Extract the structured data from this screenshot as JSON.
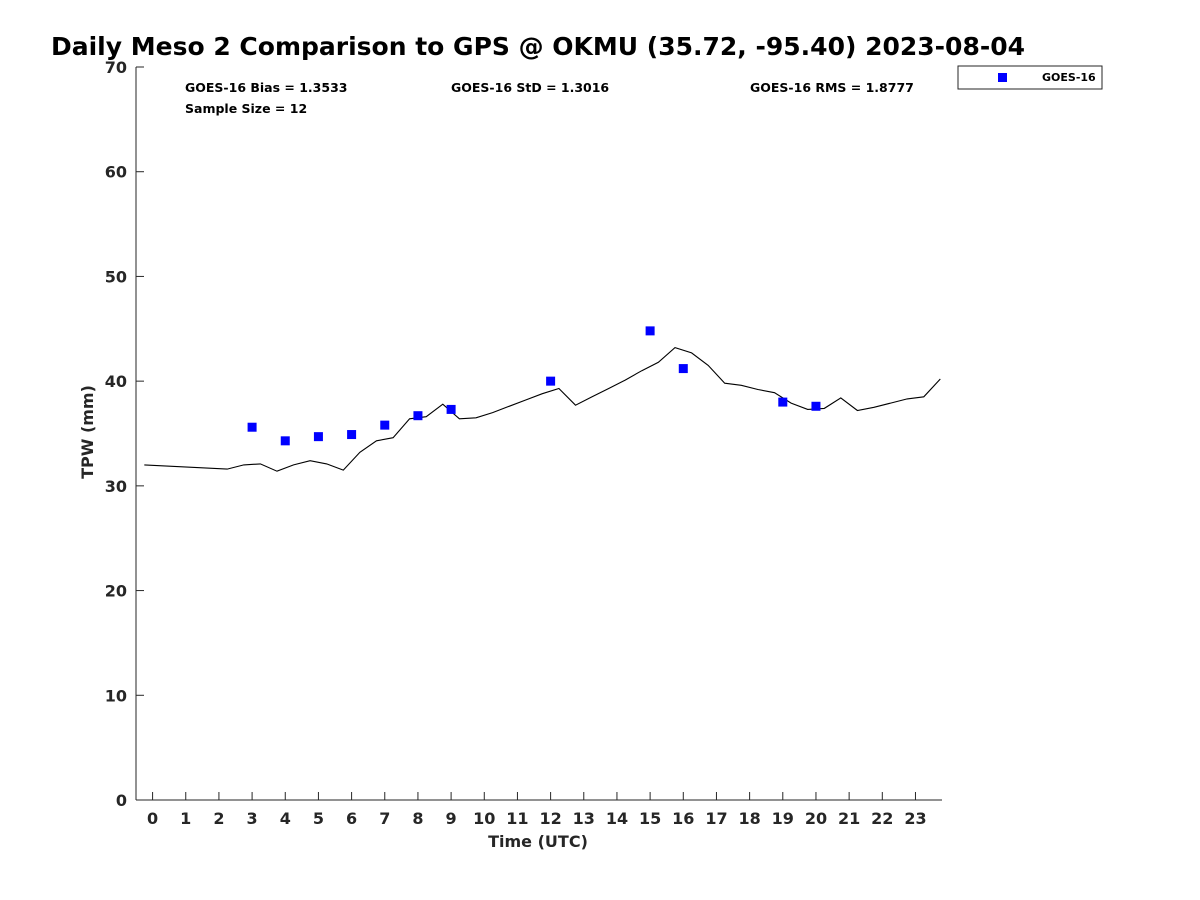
{
  "chart_data": {
    "type": "scatter",
    "title": "Daily Meso 2 Comparison to GPS @ OKMU (35.72, -95.40) 2023-08-04",
    "xlabel": "Time (UTC)",
    "ylabel": "TPW (mm)",
    "xlim": [
      -0.5,
      23.8
    ],
    "ylim": [
      0,
      70
    ],
    "x_ticks": [
      0,
      1,
      2,
      3,
      4,
      5,
      6,
      7,
      8,
      9,
      10,
      11,
      12,
      13,
      14,
      15,
      16,
      17,
      18,
      19,
      20,
      21,
      22,
      23
    ],
    "x_tick_labels": [
      "0",
      "1",
      "2",
      "3",
      "4",
      "5",
      "6",
      "7",
      "8",
      "9",
      "10",
      "11",
      "12",
      "13",
      "14",
      "15",
      "16",
      "17",
      "18",
      "19",
      "20",
      "21",
      "22",
      "23"
    ],
    "y_ticks": [
      0,
      10,
      20,
      30,
      40,
      50,
      60,
      70
    ],
    "y_tick_labels": [
      "0",
      "10",
      "20",
      "30",
      "40",
      "50",
      "60",
      "70"
    ],
    "grid": false,
    "legend_position": "outside-top-right",
    "stats": {
      "bias": "GOES-16 Bias = 1.3533",
      "std": "GOES-16 StD = 1.3016",
      "rms": "GOES-16 RMS = 1.8777",
      "sample_size": "Sample Size = 12"
    },
    "series": [
      {
        "name": "GOES-16",
        "kind": "scatter",
        "marker": "square",
        "color": "#0000ff",
        "x": [
          3.0,
          4.0,
          5.0,
          6.0,
          7.0,
          8.0,
          9.0,
          12.0,
          15.0,
          16.0,
          19.0,
          20.0
        ],
        "y": [
          35.6,
          34.3,
          34.7,
          34.9,
          35.8,
          36.7,
          37.3,
          40.0,
          44.8,
          41.2,
          38.0,
          37.6
        ]
      },
      {
        "kind": "line",
        "color": "#000000",
        "x": [
          -0.25,
          2.25,
          2.75,
          3.25,
          3.75,
          4.25,
          4.75,
          5.25,
          5.75,
          6.25,
          6.75,
          7.25,
          7.75,
          8.25,
          8.75,
          9.25,
          9.75,
          10.25,
          10.75,
          11.25,
          11.75,
          12.25,
          12.75,
          13.25,
          13.75,
          14.25,
          14.75,
          15.25,
          15.75,
          16.25,
          16.75,
          17.25,
          17.75,
          18.25,
          18.75,
          19.25,
          19.75,
          20.25,
          20.75,
          21.25,
          21.75,
          22.25,
          22.75,
          23.25,
          23.75
        ],
        "y": [
          32.0,
          31.6,
          32.0,
          32.1,
          31.4,
          32.0,
          32.4,
          32.1,
          31.5,
          33.2,
          34.3,
          34.6,
          36.4,
          36.6,
          37.8,
          36.4,
          36.5,
          37.0,
          37.6,
          38.2,
          38.8,
          39.3,
          37.7,
          38.5,
          39.3,
          40.1,
          41.0,
          41.8,
          43.2,
          42.7,
          41.5,
          39.8,
          39.6,
          39.2,
          38.9,
          37.9,
          37.3,
          37.4,
          38.4,
          37.2,
          37.5,
          37.9,
          38.3,
          38.5,
          40.2
        ]
      }
    ]
  }
}
